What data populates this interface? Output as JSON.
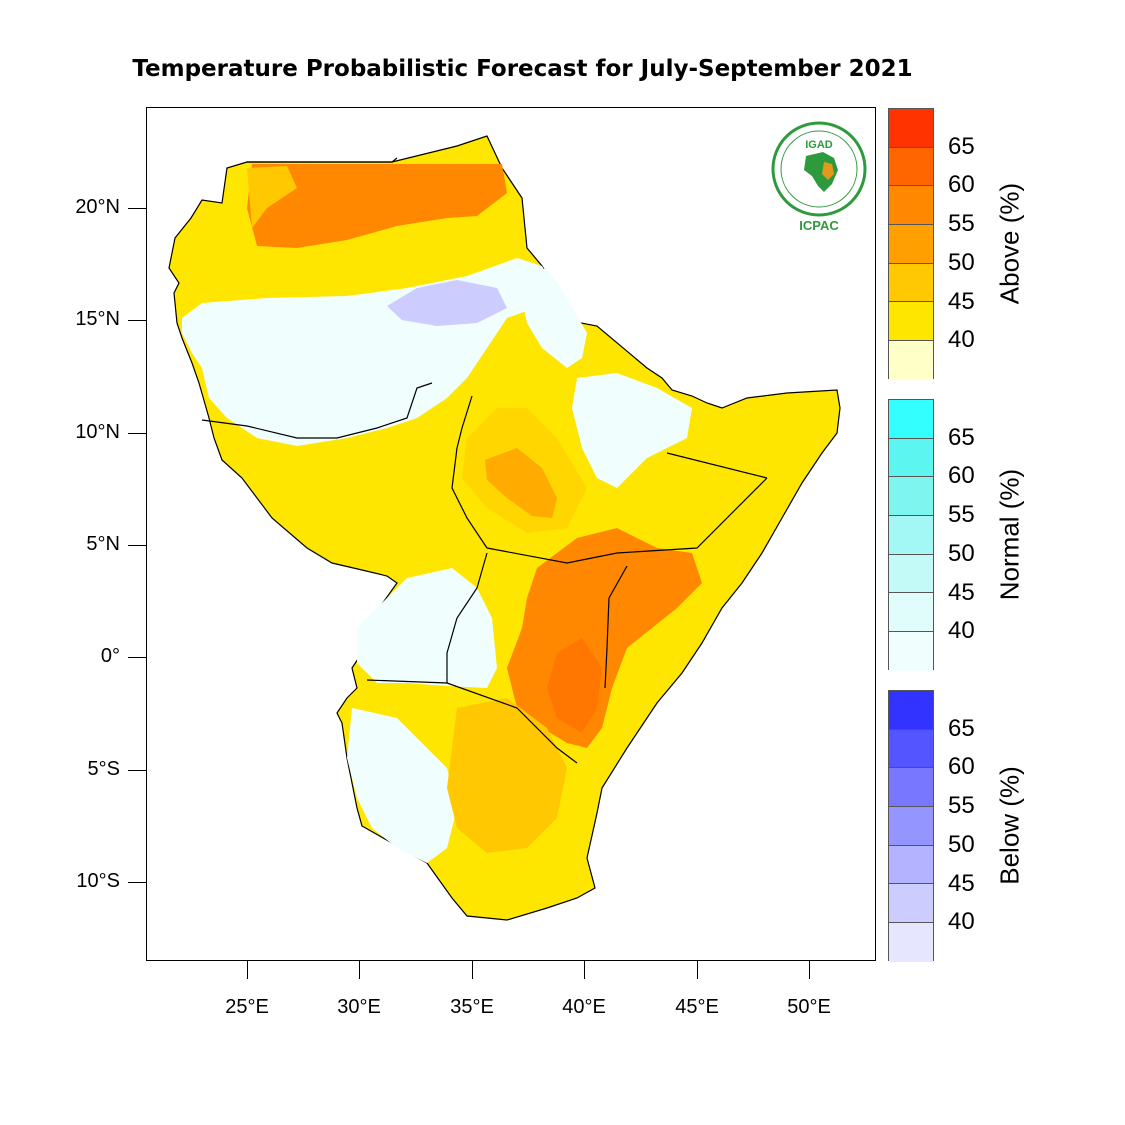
{
  "title": "Temperature Probabilistic Forecast for July-September 2021",
  "logo": {
    "name": "IGAD ICPAC",
    "label_top": "IGAD",
    "label_bottom": "ICPAC",
    "colors": {
      "green": "#2e9a3e",
      "gold": "#e39a1c"
    }
  },
  "map": {
    "lat_ticks": [
      "20°N",
      "15°N",
      "10°N",
      "5°N",
      "0°",
      "5°S",
      "10°S"
    ],
    "lon_ticks": [
      "25°E",
      "30°E",
      "35°E",
      "40°E",
      "45°E",
      "50°E"
    ]
  },
  "legends": [
    {
      "title": "Above (%)",
      "values": [
        "65",
        "60",
        "55",
        "50",
        "45",
        "40"
      ],
      "colors": [
        "#ff3300",
        "#ff6600",
        "#ff8800",
        "#ffa000",
        "#ffc800",
        "#ffe600",
        "#ffffc8"
      ]
    },
    {
      "title": "Normal (%)",
      "values": [
        "65",
        "60",
        "55",
        "50",
        "45",
        "40"
      ],
      "colors": [
        "#33ffff",
        "#5cf5f0",
        "#7ff5f0",
        "#a3f7f4",
        "#c3faf7",
        "#e0fcfb",
        "#f0fefe"
      ]
    },
    {
      "title": "Below (%)",
      "values": [
        "65",
        "60",
        "55",
        "50",
        "45",
        "40"
      ],
      "colors": [
        "#3333ff",
        "#5555ff",
        "#7777ff",
        "#9595ff",
        "#b3b3ff",
        "#ccccff",
        "#e6e6ff"
      ]
    }
  ],
  "colors": {
    "land_base": "#ffe600",
    "above_45": "#ffc800",
    "above_50": "#ffa000",
    "above_55": "#ff8800",
    "normal_40": "#f0fefe",
    "below_40": "#ccccff",
    "border": "#000000"
  }
}
